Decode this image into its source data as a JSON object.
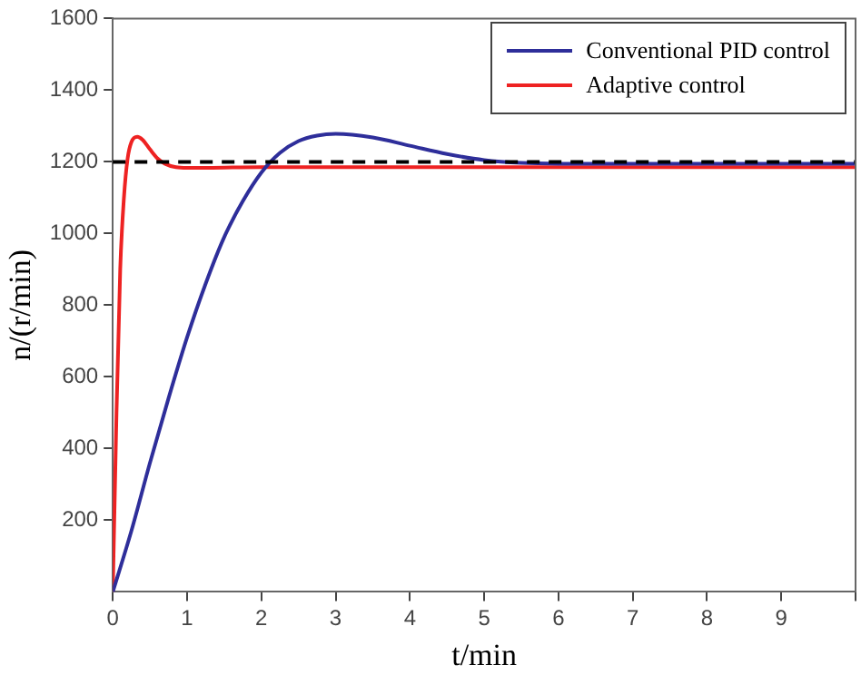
{
  "chart_data": {
    "type": "line",
    "xlabel": "t/min",
    "ylabel": "n/(r/min)",
    "xlim": [
      0,
      10
    ],
    "ylim": [
      0,
      1600
    ],
    "xticks": [
      0,
      1,
      2,
      3,
      4,
      5,
      6,
      7,
      8,
      9,
      {
        "value": 10,
        "label": null
      }
    ],
    "yticks": [
      200,
      400,
      600,
      800,
      1000,
      1200,
      1400,
      1600
    ],
    "series": [
      {
        "name": "Conventional PID control",
        "color": "#2e2e9a",
        "x": [
          0,
          0.25,
          0.5,
          0.75,
          1,
          1.25,
          1.5,
          1.75,
          2,
          2.25,
          2.5,
          2.75,
          3,
          3.5,
          4,
          4.5,
          5,
          5.5,
          6,
          7,
          8,
          9,
          10
        ],
        "values": [
          0,
          170,
          360,
          540,
          710,
          860,
          990,
          1090,
          1170,
          1225,
          1258,
          1273,
          1278,
          1268,
          1245,
          1222,
          1205,
          1197,
          1195,
          1195,
          1195,
          1195,
          1195
        ]
      },
      {
        "name": "Adaptive control",
        "color": "#ee2222",
        "x": [
          0,
          0.05,
          0.1,
          0.15,
          0.2,
          0.25,
          0.33,
          0.4,
          0.5,
          0.6,
          0.7,
          0.85,
          1,
          2,
          10
        ],
        "values": [
          0,
          500,
          900,
          1100,
          1210,
          1255,
          1270,
          1262,
          1235,
          1210,
          1195,
          1185,
          1183,
          1185,
          1185
        ]
      }
    ],
    "ref_lines": [
      {
        "axis": "y",
        "value": 1200,
        "color": "#000000",
        "line_style": "dashed"
      }
    ],
    "legend": "top right",
    "grid": false,
    "marker": "none",
    "line_style": "solid"
  }
}
